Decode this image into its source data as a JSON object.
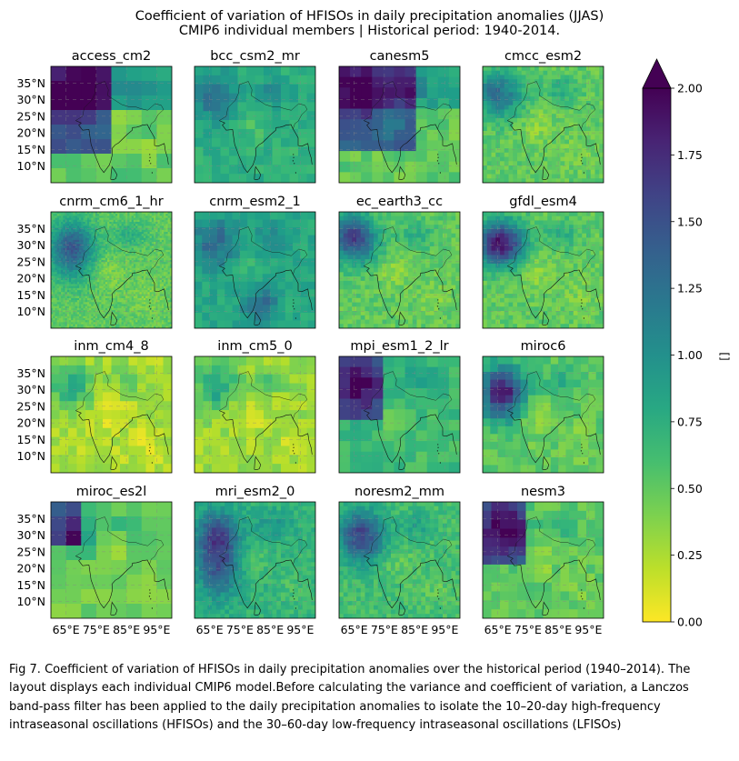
{
  "figure": {
    "title_line1": "Coefficient of variation of HFISOs in daily precipitation anomalies (JJAS)",
    "title_line2": "CMIP6 individual members | Historical period: 1940-2014.",
    "caption": "Fig 7. Coefficient of variation of HFISOs in daily precipitation anomalies over the historical period (1940–2014). The layout displays each individual CMIP6 model.Before calculating the variance and coefficient of variation, a Lanczos band-pass filter has been applied to the daily precipitation anomalies to isolate the 10–20-day high-frequency intraseasonal oscillations (HFISOs) and the 30–60-day low-frequency intraseasonal oscillations (LFISOs)"
  },
  "chart_data": {
    "type": "heatmap",
    "colormap": "viridis_r",
    "map_extent": {
      "lon": [
        60,
        100
      ],
      "lat": [
        5,
        40
      ]
    },
    "x_ticks": [
      "65°E",
      "75°E",
      "85°E",
      "95°E"
    ],
    "x_tick_values": [
      65,
      75,
      85,
      95
    ],
    "y_ticks": [
      "10°N",
      "15°N",
      "20°N",
      "25°N",
      "30°N",
      "35°N"
    ],
    "y_tick_values": [
      10,
      15,
      20,
      25,
      30,
      35
    ],
    "grid": true,
    "colorbar": {
      "label": "[]",
      "min": 0.0,
      "max": 2.0,
      "extend": "max",
      "ticks": [
        "0.00",
        "0.25",
        "0.50",
        "0.75",
        "1.00",
        "1.25",
        "1.50",
        "1.75",
        "2.00"
      ],
      "tick_values": [
        0.0,
        0.25,
        0.5,
        0.75,
        1.0,
        1.25,
        1.5,
        1.75,
        2.0
      ]
    },
    "panels": [
      {
        "name": "access_cm2",
        "res": 8
      },
      {
        "name": "bcc_csm2_mr",
        "res": 14
      },
      {
        "name": "canesm5",
        "res": 11
      },
      {
        "name": "cmcc_esm2",
        "res": 28
      },
      {
        "name": "cnrm_cm6_1_hr",
        "res": 60
      },
      {
        "name": "cnrm_esm2_1",
        "res": 16
      },
      {
        "name": "ec_earth3_cc",
        "res": 28
      },
      {
        "name": "gfdl_esm4",
        "res": 28
      },
      {
        "name": "inm_cm4_8",
        "res": 14
      },
      {
        "name": "inm_cm5_0",
        "res": 14
      },
      {
        "name": "mpi_esm1_2_lr",
        "res": 11
      },
      {
        "name": "miroc6",
        "res": 16
      },
      {
        "name": "miroc_es2l",
        "res": 8
      },
      {
        "name": "mri_esm2_0",
        "res": 28
      },
      {
        "name": "noresm2_mm",
        "res": 28
      },
      {
        "name": "nesm3",
        "res": 14
      }
    ]
  }
}
